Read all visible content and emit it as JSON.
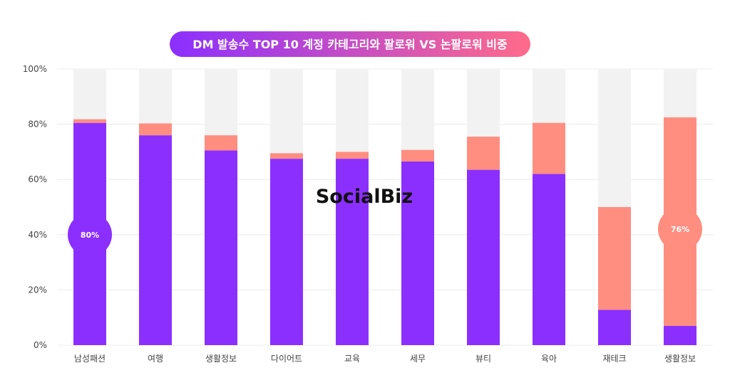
{
  "chart_data": {
    "type": "bar",
    "stacked": true,
    "title": "DM 발송수 TOP 10 계정 카테고리와 팔로워 VS 논팔로워 비중",
    "watermark": "SocialBiz",
    "categories": [
      "남성패션",
      "여행",
      "생활정보",
      "다이어트",
      "교육",
      "세무",
      "뷰티",
      "육아",
      "재테크",
      "생활정보"
    ],
    "series": [
      {
        "key": "follower",
        "color": "#8b2fff",
        "values": [
          80.5,
          76,
          70.5,
          67.5,
          67.5,
          66.5,
          63.5,
          62,
          12.8,
          7
        ]
      },
      {
        "key": "non_follower",
        "color": "#ff8d80",
        "values": [
          1.3,
          4.3,
          5.5,
          2,
          2.5,
          4.2,
          12,
          18.5,
          37.2,
          75.5
        ]
      }
    ],
    "remainder_color": "#f2f2f2",
    "ylim": [
      0,
      100
    ],
    "yticks": [
      0,
      20,
      40,
      60,
      80,
      100
    ],
    "ytick_labels": [
      "0%",
      "20%",
      "40%",
      "60%",
      "80%",
      "100%"
    ],
    "annotations": [
      {
        "label": "80%",
        "category_index": 0,
        "value": 40,
        "color": "#8b2fff"
      },
      {
        "label": "76%",
        "category_index": 9,
        "value": 42,
        "color": "#ff8d80"
      }
    ],
    "title_gradient": [
      "#8b2fff",
      "#ff6b8a"
    ],
    "grid": true
  }
}
